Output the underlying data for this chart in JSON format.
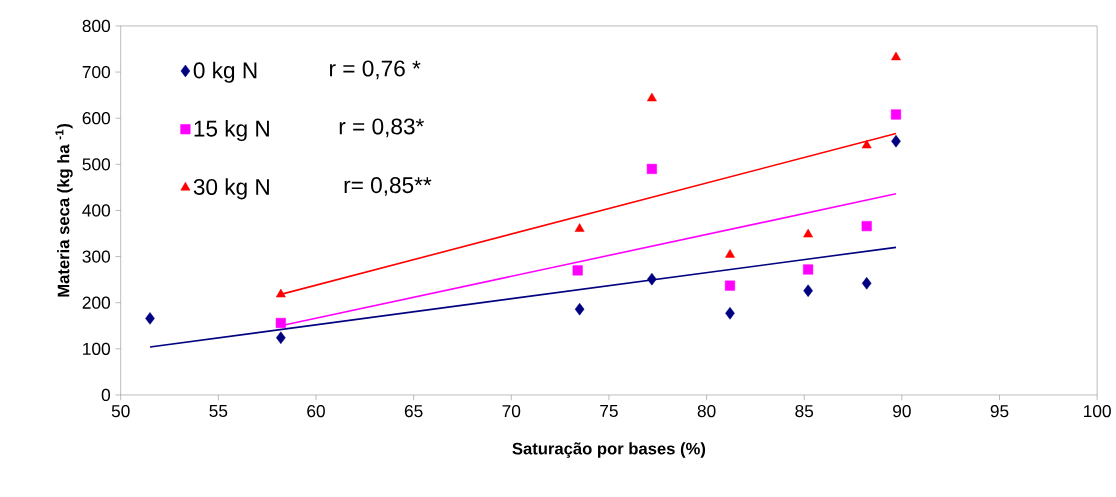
{
  "chart_data": {
    "type": "scatter",
    "xlabel": "Saturação por bases (%)",
    "ylabel": "Materia seca (kg ha $^{-1}$)",
    "xlim": [
      50,
      100
    ],
    "xticks": [
      50,
      55,
      60,
      65,
      70,
      75,
      80,
      85,
      90,
      95,
      100
    ],
    "ylim": [
      0,
      800
    ],
    "yticks": [
      0,
      100,
      200,
      300,
      400,
      500,
      600,
      700,
      800
    ],
    "grid": false,
    "legend": "top left",
    "annotations": [
      "r = 0,76 *",
      "r = 0,83*",
      "r= 0,85**"
    ],
    "series": [
      {
        "name": "0 kg N",
        "marker": "diamond",
        "color": "#000080",
        "x": [
          51.5,
          58.2,
          73.5,
          77.2,
          81.2,
          85.2,
          88.2,
          89.7
        ],
        "values": [
          166,
          124,
          186,
          251,
          177,
          226,
          242,
          550
        ]
      },
      {
        "name": "15 kg N",
        "marker": "square",
        "color": "#ff00ff",
        "x": [
          58.2,
          73.4,
          77.2,
          81.2,
          85.2,
          88.2,
          89.7
        ],
        "values": [
          156,
          270,
          490,
          237,
          272,
          366,
          608
        ]
      },
      {
        "name": "30 kg N",
        "marker": "triangle",
        "color": "#ff0000",
        "x": [
          58.2,
          73.5,
          77.2,
          81.2,
          85.2,
          88.2,
          89.7
        ],
        "values": [
          218,
          360,
          643,
          304,
          348,
          541,
          732
        ]
      },
      {
        "type": "line",
        "color": "#000080",
        "x": [
          51.5,
          89.7
        ],
        "values": [
          104,
          320
        ]
      },
      {
        "type": "line",
        "color": "#ff00ff",
        "x": [
          58.2,
          89.7
        ],
        "values": [
          150,
          436
        ]
      },
      {
        "type": "line",
        "color": "#ff0000",
        "x": [
          58.2,
          89.7
        ],
        "values": [
          218,
          567
        ]
      }
    ]
  }
}
